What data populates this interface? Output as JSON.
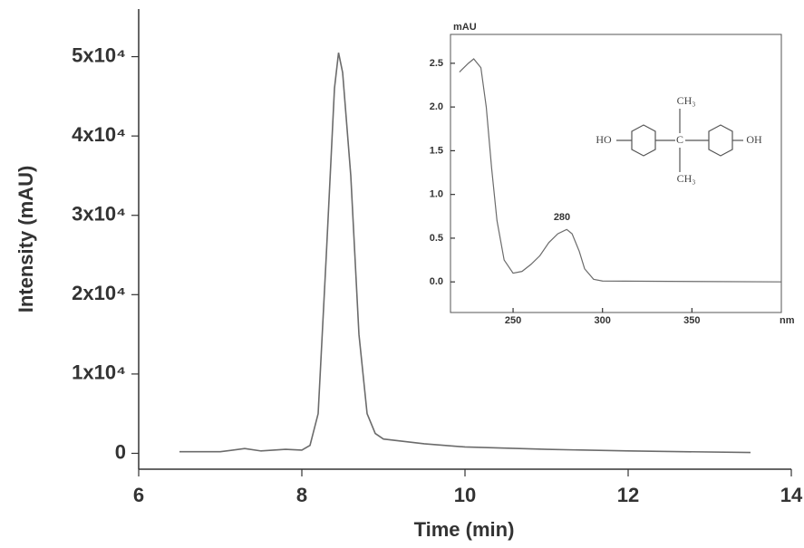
{
  "chart_data": [
    {
      "type": "line",
      "xlabel": "Time (min)",
      "ylabel": "Intensity (mAU)",
      "color": "#6b6b6b",
      "x": [
        6.5,
        7.0,
        7.3,
        7.5,
        7.8,
        8.0,
        8.1,
        8.2,
        8.3,
        8.4,
        8.45,
        8.5,
        8.6,
        8.7,
        8.8,
        8.9,
        9.0,
        9.5,
        10.0,
        11.0,
        12.0,
        13.5
      ],
      "values": [
        200,
        200,
        600,
        300,
        500,
        400,
        1000,
        5000,
        25000,
        46000,
        50500,
        48000,
        35000,
        15000,
        5000,
        2500,
        1800,
        1200,
        800,
        500,
        300,
        100
      ],
      "xlim": [
        6,
        14
      ],
      "xticks": [
        6,
        8,
        10,
        12,
        14
      ],
      "ylim": [
        -2000,
        56000
      ],
      "yticks": [
        0,
        {
          "value": 10000,
          "label": "1x10⁴"
        },
        {
          "value": 20000,
          "label": "2x10⁴"
        },
        {
          "value": 30000,
          "label": "3x10⁴"
        },
        {
          "value": 40000,
          "label": "4x10⁴"
        },
        {
          "value": 50000,
          "label": "5x10⁴"
        }
      ]
    },
    {
      "type": "line",
      "xlabel": "nm",
      "ylabel": "mAU",
      "color": "#6b6b6b",
      "x": [
        220,
        225,
        228,
        232,
        235,
        238,
        241,
        245,
        250,
        255,
        260,
        265,
        270,
        275,
        280,
        283,
        287,
        290,
        295,
        300,
        400
      ],
      "values": [
        2.4,
        2.5,
        2.55,
        2.45,
        2.0,
        1.3,
        0.7,
        0.25,
        0.1,
        0.12,
        0.2,
        0.3,
        0.45,
        0.55,
        0.6,
        0.55,
        0.35,
        0.15,
        0.03,
        0.01,
        0.0
      ],
      "xlim": [
        215,
        400
      ],
      "xticks": [
        250,
        300,
        350
      ],
      "ylim": [
        -0.35,
        2.83
      ],
      "yticks": [
        {
          "value": 0,
          "label": "0.0"
        },
        0.5,
        {
          "value": 1,
          "label": "1.0"
        },
        1.5,
        {
          "value": 2,
          "label": "2.0"
        },
        2.5
      ],
      "annotations": [
        "280"
      ],
      "structure": [
        "HO",
        "OH",
        "CH₃",
        "C",
        "CH₃"
      ]
    }
  ]
}
